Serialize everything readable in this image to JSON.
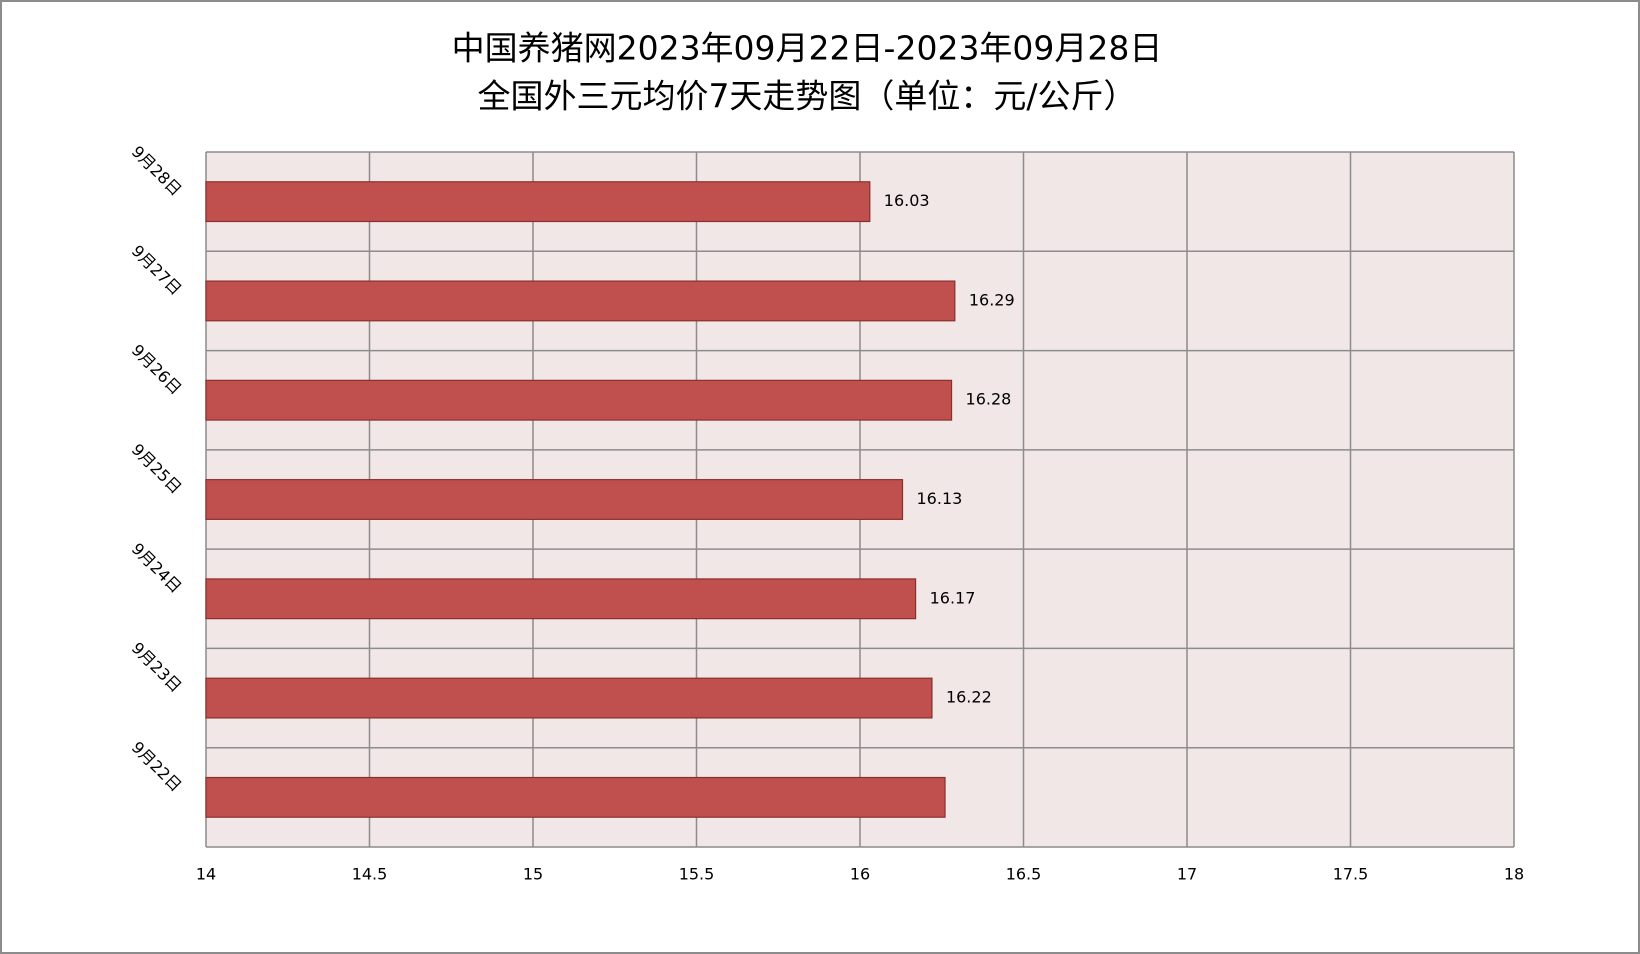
{
  "chart_data": {
    "type": "bar",
    "orientation": "horizontal",
    "title": "中国养猪网2023年09月22日-2023年09月28日",
    "subtitle": "全国外三元均价7天走势图（单位：元/公斤）",
    "categories": [
      "9月22日",
      "9月23日",
      "9月24日",
      "9月25日",
      "9月26日",
      "9月27日",
      "9月28日"
    ],
    "values": [
      16.26,
      16.22,
      16.17,
      16.13,
      16.28,
      16.29,
      16.03
    ],
    "value_labels": [
      null,
      "16.22",
      "16.17",
      "16.13",
      "16.28",
      "16.29",
      "16.03"
    ],
    "color": "#c0504d",
    "xlim": [
      14,
      18
    ],
    "xticks": [
      14,
      14.5,
      15,
      15.5,
      16,
      16.5,
      17,
      17.5,
      18
    ],
    "grid": true
  }
}
